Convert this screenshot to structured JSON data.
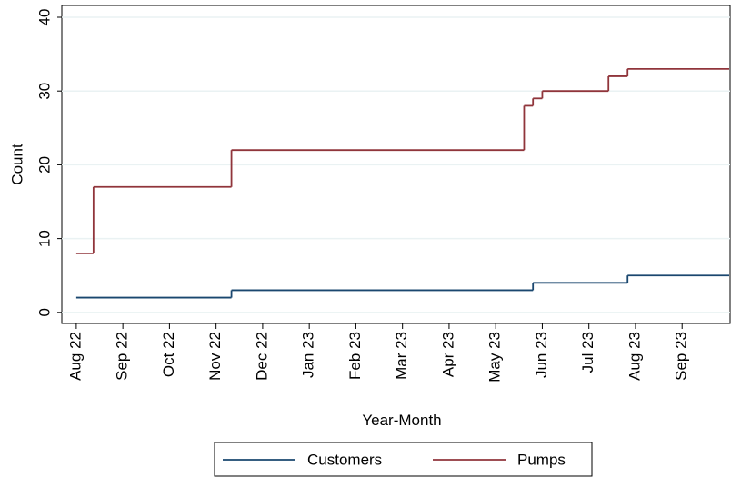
{
  "chart_data": {
    "type": "step",
    "x_label": "Year-Month",
    "y_label": "Count",
    "xlim": [
      -0.31,
      14.03
    ],
    "xticks": [
      {
        "value": 0,
        "label": "Aug 22"
      },
      {
        "value": 1,
        "label": "Sep 22"
      },
      {
        "value": 2,
        "label": "Oct 22"
      },
      {
        "value": 3,
        "label": "Nov 22"
      },
      {
        "value": 4,
        "label": "Dec 22"
      },
      {
        "value": 5,
        "label": "Jan 23"
      },
      {
        "value": 6,
        "label": "Feb 23"
      },
      {
        "value": 7,
        "label": "Mar 23"
      },
      {
        "value": 8,
        "label": "Apr 23"
      },
      {
        "value": 9,
        "label": "May 23"
      },
      {
        "value": 10,
        "label": "Jun 23"
      },
      {
        "value": 11,
        "label": "Jul 23"
      },
      {
        "value": 12,
        "label": "Aug 23"
      },
      {
        "value": 13,
        "label": "Sep 23"
      }
    ],
    "ylim": [
      -1.5,
      41.6
    ],
    "yticks": [
      0,
      10,
      20,
      30,
      40
    ],
    "grid": true,
    "series": [
      {
        "name": "Customers",
        "color": "#1a476f",
        "x": [
          0,
          3.33,
          9.8,
          11.83
        ],
        "values": [
          2,
          3,
          4,
          5
        ]
      },
      {
        "name": "Pumps",
        "color": "#90353b",
        "x": [
          0,
          0.37,
          3.33,
          9.61,
          9.8,
          10.0,
          11.42,
          11.83
        ],
        "values": [
          8,
          17,
          22,
          28,
          29,
          30,
          32,
          33
        ]
      }
    ]
  }
}
